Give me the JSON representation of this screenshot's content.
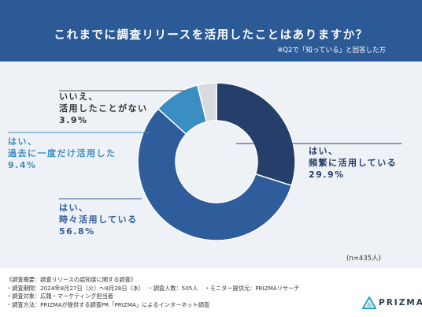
{
  "header": {
    "title": "これまでに調査リリースを活用したことはありますか？",
    "note": "※Q2で「知っている」と回答した方"
  },
  "colors": {
    "header_bg": "#2c5a96",
    "slice_1": "#263f6a",
    "slice_2": "#2f5d9c",
    "slice_3": "#3a8ec2",
    "slice_4": "#d7dbe0"
  },
  "chart_data": {
    "type": "pie",
    "donut": true,
    "series": [
      {
        "label_line1": "はい、",
        "label_line2": "頻繁に活用している",
        "value": 29.9,
        "display": "29.9%"
      },
      {
        "label_line1": "はい、",
        "label_line2": "時々活用している",
        "value": 56.8,
        "display": "56.8%"
      },
      {
        "label_line1": "はい、",
        "label_line2": "過去に一度だけ活用した",
        "value": 9.4,
        "display": "9.4%"
      },
      {
        "label_line1": "いいえ、",
        "label_line2": "活用したことがない",
        "value": 3.9,
        "display": "3.9%"
      }
    ],
    "sample_size": "(n=435人)"
  },
  "footer": {
    "overview": "《調査概要：調査リリースの認知度に関する調査》",
    "period": "・調査期間：2024年8月27日（火）〜8月28日（水）",
    "respondents": "・調査人数：505人",
    "monitor": "・モニター提供元：PRIZMAリサーチ",
    "target": "・調査対象：広報・マーケティング担当者",
    "method": "・調査方法：PRIZMAが提供する調査PR「PRIZMA」によるインターネット調査"
  },
  "logo": {
    "text": "PRIZMA",
    "icon": "prism-triangle-icon"
  }
}
